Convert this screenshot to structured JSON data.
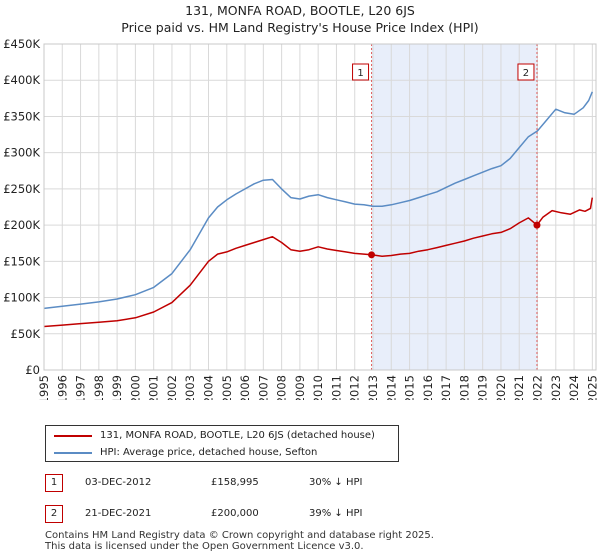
{
  "title_line1": "131, MONFA ROAD, BOOTLE, L20 6JS",
  "title_line2": "Price paid vs. HM Land Registry's House Price Index (HPI)",
  "chart_data": {
    "type": "line",
    "x_range": [
      1995,
      2025.2
    ],
    "ylim": [
      0,
      450000
    ],
    "yticks": [
      0,
      50000,
      100000,
      150000,
      200000,
      250000,
      300000,
      350000,
      400000,
      450000
    ],
    "ytick_labels": [
      "£0",
      "£50K",
      "£100K",
      "£150K",
      "£200K",
      "£250K",
      "£300K",
      "£350K",
      "£400K",
      "£450K"
    ],
    "xticks": [
      1995,
      1996,
      1997,
      1998,
      1999,
      2000,
      2001,
      2002,
      2003,
      2004,
      2005,
      2006,
      2007,
      2008,
      2009,
      2010,
      2011,
      2012,
      2013,
      2014,
      2015,
      2016,
      2017,
      2018,
      2019,
      2020,
      2021,
      2022,
      2023,
      2024,
      2025
    ],
    "grid": true,
    "shaded_region": {
      "start": 2012.92,
      "end": 2021.97,
      "color": "#e8eefa"
    },
    "series": [
      {
        "name": "131, MONFA ROAD, BOOTLE, L20 6JS (detached house)",
        "color": "#c00000",
        "x": [
          1995.0,
          1996.0,
          1997.0,
          1998.0,
          1999.0,
          2000.0,
          2001.0,
          2002.0,
          2003.0,
          2004.0,
          2004.5,
          2005.0,
          2005.5,
          2006.0,
          2006.5,
          2007.0,
          2007.5,
          2008.0,
          2008.5,
          2009.0,
          2009.5,
          2010.0,
          2010.5,
          2011.0,
          2011.5,
          2012.0,
          2012.5,
          2012.92,
          2013.5,
          2014.0,
          2014.5,
          2015.0,
          2015.5,
          2016.0,
          2016.5,
          2017.0,
          2017.5,
          2018.0,
          2018.5,
          2019.0,
          2019.5,
          2020.0,
          2020.5,
          2021.0,
          2021.5,
          2021.97,
          2022.3,
          2022.8,
          2023.3,
          2023.8,
          2024.3,
          2024.6,
          2024.9,
          2025.0
        ],
        "y": [
          60000,
          62000,
          64000,
          66000,
          68000,
          72000,
          80000,
          93000,
          117000,
          150000,
          160000,
          163000,
          168000,
          172000,
          176000,
          180000,
          184000,
          176000,
          166000,
          164000,
          166000,
          170000,
          167000,
          165000,
          163000,
          161000,
          160000,
          158995,
          157000,
          158000,
          160000,
          161000,
          164000,
          166000,
          169000,
          172000,
          175000,
          178000,
          182000,
          185000,
          188000,
          190000,
          195000,
          203000,
          210000,
          200000,
          211000,
          220000,
          217000,
          215000,
          221000,
          219000,
          223000,
          238000
        ]
      },
      {
        "name": "HPI: Average price, detached house, Sefton",
        "color": "#5b8cc4",
        "x": [
          1995.0,
          1996.0,
          1997.0,
          1998.0,
          1999.0,
          2000.0,
          2001.0,
          2002.0,
          2003.0,
          2004.0,
          2004.5,
          2005.0,
          2005.5,
          2006.0,
          2006.5,
          2007.0,
          2007.5,
          2008.0,
          2008.5,
          2009.0,
          2009.5,
          2010.0,
          2010.5,
          2011.0,
          2011.5,
          2012.0,
          2012.5,
          2013.0,
          2013.5,
          2014.0,
          2014.5,
          2015.0,
          2015.5,
          2016.0,
          2016.5,
          2017.0,
          2017.5,
          2018.0,
          2018.5,
          2019.0,
          2019.5,
          2020.0,
          2020.5,
          2021.0,
          2021.5,
          2022.0,
          2022.5,
          2023.0,
          2023.5,
          2024.0,
          2024.5,
          2024.8,
          2025.0
        ],
        "y": [
          85000,
          88000,
          91000,
          94000,
          98000,
          104000,
          114000,
          133000,
          166000,
          210000,
          225000,
          235000,
          243000,
          250000,
          257000,
          262000,
          263000,
          250000,
          238000,
          236000,
          240000,
          242000,
          238000,
          235000,
          232000,
          229000,
          228000,
          226000,
          226000,
          228000,
          231000,
          234000,
          238000,
          242000,
          246000,
          252000,
          258000,
          263000,
          268000,
          273000,
          278000,
          282000,
          292000,
          307000,
          322000,
          330000,
          345000,
          360000,
          355000,
          353000,
          362000,
          372000,
          384000
        ]
      }
    ],
    "markers": [
      {
        "label": "1",
        "x": 2012.92,
        "y": 158995,
        "color": "#c00000"
      },
      {
        "label": "2",
        "x": 2021.97,
        "y": 200000,
        "color": "#c00000"
      }
    ]
  },
  "legend": {
    "items": [
      {
        "label": "131, MONFA ROAD, BOOTLE, L20 6JS (detached house)",
        "color": "#c00000"
      },
      {
        "label": "HPI: Average price, detached house, Sefton",
        "color": "#5b8cc4"
      }
    ]
  },
  "transactions": [
    {
      "num": "1",
      "date": "03-DEC-2012",
      "price": "£158,995",
      "hpi": "30% ↓ HPI"
    },
    {
      "num": "2",
      "date": "21-DEC-2021",
      "price": "£200,000",
      "hpi": "39% ↓ HPI"
    }
  ],
  "footer": {
    "line1": "Contains HM Land Registry data © Crown copyright and database right 2025.",
    "line2": "This data is licensed under the Open Government Licence v3.0."
  }
}
